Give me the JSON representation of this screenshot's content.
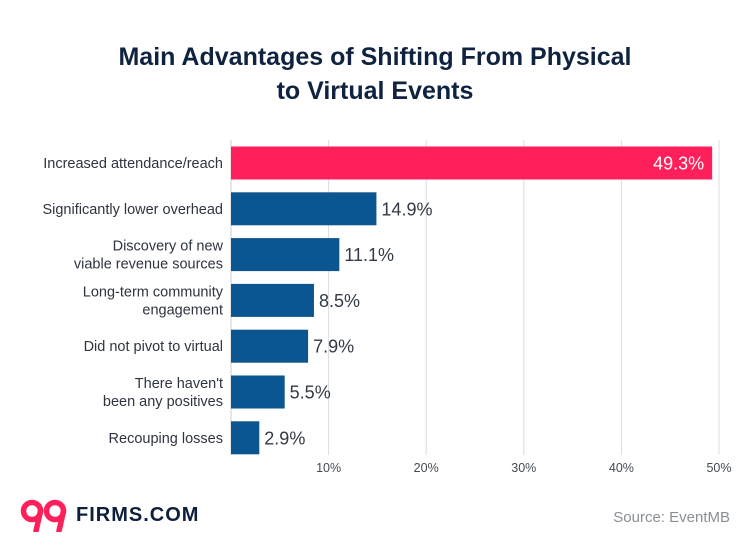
{
  "chart_data": {
    "type": "bar",
    "orientation": "horizontal",
    "title_lines": [
      "Main Advantages of Shifting From Physical",
      "to Virtual Events"
    ],
    "categories": [
      [
        "Increased attendance/reach"
      ],
      [
        "Significantly lower overhead"
      ],
      [
        "Discovery of new",
        "viable revenue sources"
      ],
      [
        "Long-term community",
        "engagement"
      ],
      [
        "Did not pivot to virtual"
      ],
      [
        "There haven't",
        "been any positives"
      ],
      [
        "Recouping losses"
      ]
    ],
    "values": [
      49.3,
      14.9,
      11.1,
      8.5,
      7.9,
      5.5,
      2.9
    ],
    "value_labels": [
      "49.3%",
      "14.9%",
      "11.1%",
      "8.5%",
      "7.9%",
      "5.5%",
      "2.9%"
    ],
    "xlim": [
      0,
      50
    ],
    "ticks": [
      10,
      20,
      30,
      40,
      50
    ],
    "tick_labels": [
      "10%",
      "20%",
      "30%",
      "40%",
      "50%"
    ],
    "grid": true,
    "colors": {
      "highlight": "#ff1f5a",
      "bar": "#0b5590",
      "grid": "#d9dce0"
    }
  },
  "footer": {
    "logo_mark": "99",
    "logo_text": "FIRMS.COM",
    "source": "Source: EventMB"
  }
}
